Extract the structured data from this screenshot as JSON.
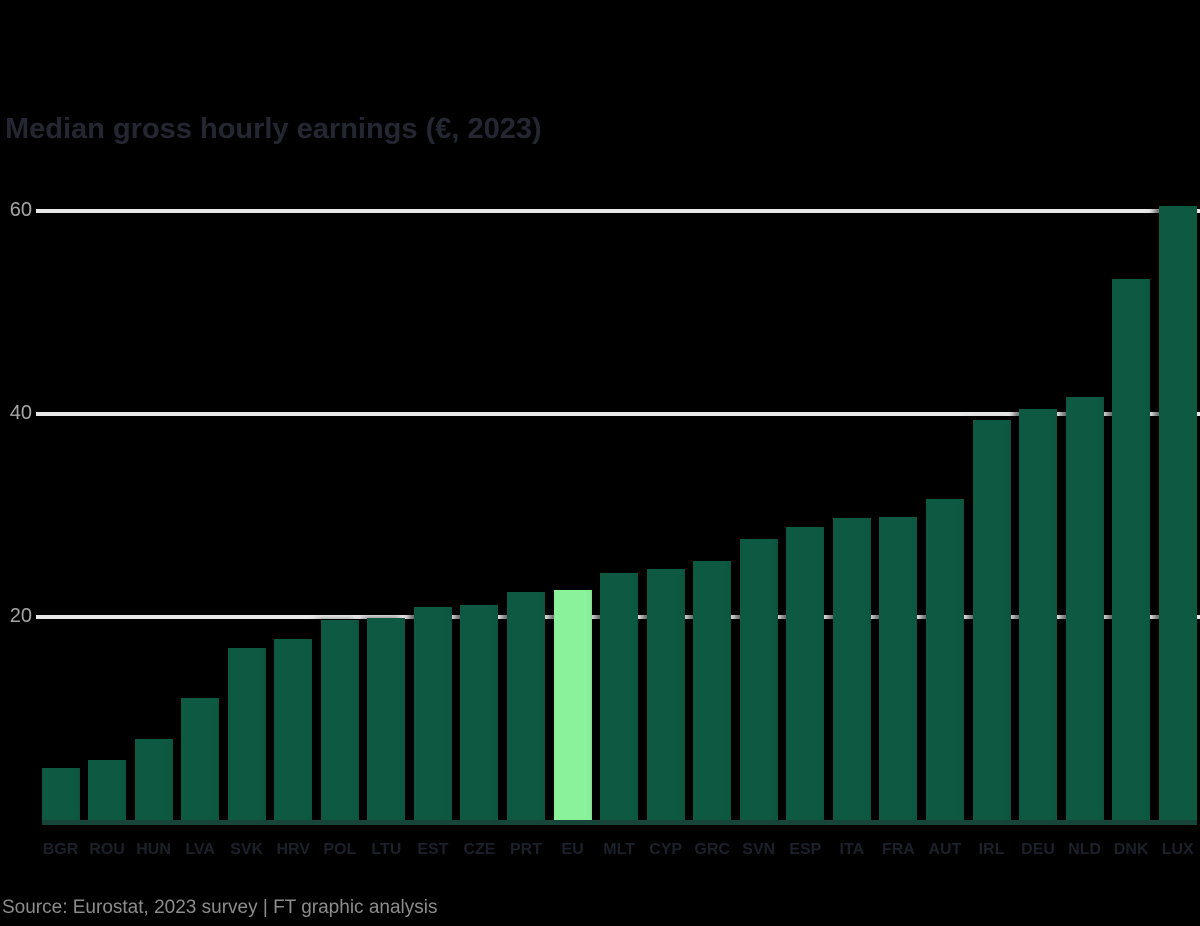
{
  "chart_data": {
    "type": "bar",
    "title": "Median gross hourly earnings (€, 2023)",
    "categories": [
      "BGR",
      "ROU",
      "HUN",
      "LVA",
      "SVK",
      "HRV",
      "POL",
      "LTU",
      "EST",
      "CZE",
      "PRT",
      "EU",
      "MLT",
      "CYP",
      "GRC",
      "SVN",
      "ESP",
      "ITA",
      "FRA",
      "AUT",
      "IRL",
      "DEU",
      "NLD",
      "DNK",
      "LUX"
    ],
    "values": [
      5.1,
      5.9,
      8.0,
      12.0,
      16.9,
      17.8,
      19.7,
      19.9,
      21.0,
      21.2,
      22.5,
      22.7,
      24.3,
      24.7,
      25.5,
      27.7,
      28.9,
      29.8,
      29.9,
      31.6,
      39.4,
      40.5,
      41.7,
      53.3,
      60.5
    ],
    "highlight_index": 11,
    "highlight_category": "EU",
    "xlabel": "",
    "ylabel": "",
    "ylim": [
      0,
      65
    ],
    "yticks": [
      20,
      40,
      60
    ],
    "ytick_labels": [
      "20",
      "40",
      "60"
    ],
    "grid": "horizontal gridlines at 20/40/60, drawn behind bars",
    "legend_position": "none"
  },
  "footer": {
    "source": "Source: Eurostat, 2023 survey | FT graphic analysis"
  },
  "colors": {
    "background": "#000000",
    "bar": "#0e5942",
    "bar_highlight": "#8bf29c",
    "gridline": "#e8e8e8",
    "baseline": "#17453a",
    "title_text": "#242731",
    "x_tick_text": "#1c202a",
    "y_tick_text": "#a6a6a6",
    "source_text": "#8d8d8d"
  }
}
